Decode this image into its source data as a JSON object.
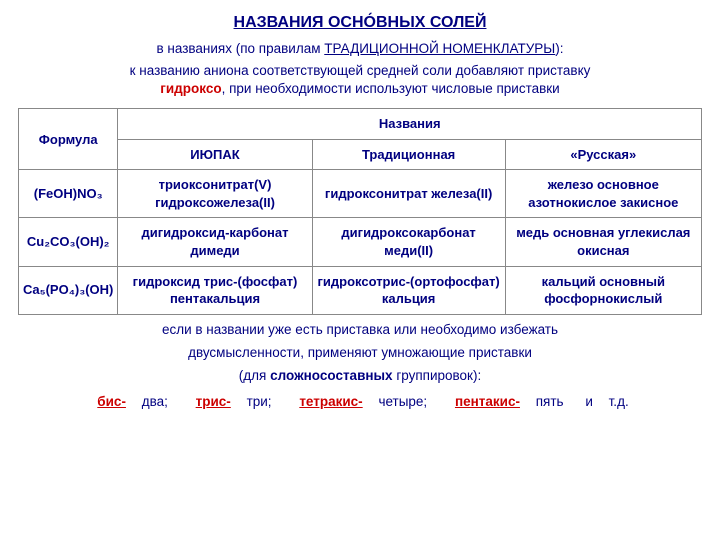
{
  "title": "НАЗВАНИЯ ОСНО́ВНЫХ СОЛЕЙ",
  "subtitle_prefix": "в названиях ",
  "subtitle_mid": "(по правилам ",
  "subtitle_link": "ТРАДИЦИОННОЙ НОМЕНКЛАТУРЫ",
  "subtitle_end": "):",
  "desc_1": "к названию аниона соответствующей средней соли добавляют приставку",
  "desc_hl": "гидроксо",
  "desc_2": ", при необходимости используют числовые приставки",
  "th_formula": "Формула",
  "th_names": "Названия",
  "th_iupac": "ИЮПАК",
  "th_trad": "Традиционная",
  "th_rus": "«Русская»",
  "r1_f": "(FeOH)NO₃",
  "r1_a": "триоксонитрат(V) гидроксожелеза(II)",
  "r1_b": "гидроксонитрат железа(II)",
  "r1_c": "железо основное азотнокислое закисное",
  "r2_f": "Cu₂CO₃(OH)₂",
  "r2_a": "дигидроксид-карбонат димеди",
  "r2_b": "дигидроксокарбонат меди(II)",
  "r2_c": "медь основная углекислая окисная",
  "r3_f": "Ca₅(PO₄)₃(OH)",
  "r3_a": "гидроксид трис-(фосфат) пентакальция",
  "r3_b": "гидроксотрис-(ортофосфат) кальция",
  "r3_c": "кальций основный фосфорнокислый",
  "note_1": "если в названии уже есть приставка или необходимо избежать",
  "note_2": "двусмысленности, применяют умножающие приставки",
  "note_3a": "(для ",
  "note_3b": "сложносоставных",
  "note_3c": " группировок):",
  "p_bis_a": "бис-",
  "p_bis_b": " два;",
  "p_tris_a": "трис-",
  "p_tris_b": " три;",
  "p_tet_a": "тетракис-",
  "p_tet_b": " четыре;",
  "p_pen_a": "пентакис-",
  "p_pen_b": " пять",
  "p_and": "и",
  "p_etc": "т.д."
}
